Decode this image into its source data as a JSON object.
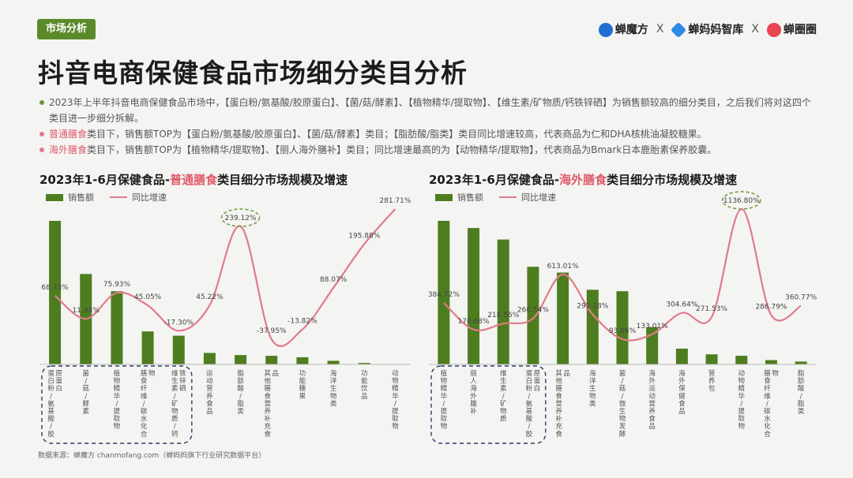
{
  "header": {
    "tag": "市场分析",
    "logos": [
      "蝉魔方",
      "蝉妈妈智库",
      "蝉圈圈"
    ],
    "separator": "X",
    "colors": {
      "tag": "#5b8a2b",
      "logo1": "#1f6fd1",
      "logo2": "#2d8be6",
      "logo3": "#e8454f"
    }
  },
  "title": "抖音电商保健食品市场细分类目分析",
  "bullets": [
    "2023年上半年抖音电商保健食品市场中，【蛋白粉/氨基酸/胶原蛋白】、【菌/菇/酵素】、【植物精华/提取物】、【维生素/矿物质/钙铁锌硒】为销售额较高的细分类目，之后我们将对这四个类目进一步细分拆解。",
    {
      "highlight": "普通膳食",
      "text": "类目下，销售额TOP为【蛋白粉/氨基酸/胶原蛋白】、【菌/菇/酵素】类目；【脂肪酸/脂类】类目同比增速较高，代表商品为仁和DHA核桃油凝胶糖果。"
    },
    {
      "highlight": "海外膳食",
      "text": "类目下，销售额TOP为【植物精华/提取物】、【丽人海外膳补】类目；同比增速最高的为【动物精华/提取物】，代表商品为Bmark日本鹿胎素保养胶囊。"
    }
  ],
  "legend": {
    "bar": "销售额",
    "line": "同比增速"
  },
  "colors": {
    "bar": "#4e7d1f",
    "line": "#e07a8a",
    "highlight": "#e05a6a",
    "dash_box": "#2a3a6a",
    "dash_ellipse": "#6b9a3a"
  },
  "source": "数据来源：蝉魔方 chanmofang.com（蝉妈妈旗下行业研究数据平台）",
  "chart_data": [
    {
      "type": "bar",
      "title_prefix": "2023年1-6月保健食品-",
      "title_highlight": "普通膳食",
      "title_suffix": "类目细分市场规模及增速",
      "categories": [
        "蛋白粉/氨基酸/胶原蛋白",
        "菌/菇/酵素",
        "植物精华/提取物",
        "膳食纤维/碳水化合物",
        "维生素/矿物质/钙铁锌硒",
        "运动营养食品",
        "脂肪酸/脂类",
        "其他膳食营养补充食品",
        "功能糖果",
        "海洋生物类",
        "功能饮品",
        "动物精华/提取物"
      ],
      "series": [
        {
          "name": "销售额",
          "type": "bar",
          "values": [
            100,
            63,
            51,
            23,
            20,
            8,
            6.5,
            6,
            5,
            2.5,
            1,
            0.3
          ]
        },
        {
          "name": "同比增速",
          "type": "line",
          "values": [
            68.73,
            11.94,
            75.93,
            45.05,
            -17.3,
            45.22,
            239.12,
            -37.95,
            -13.82,
            88.07,
            195.88,
            281.71
          ]
        }
      ],
      "labels": [
        "68.73%",
        "11.94%",
        "75.93%",
        "45.05%",
        "-17.30%",
        "45.22%",
        "239.12%",
        "-37.95%",
        "-13.82%",
        "88.07%",
        "195.88%",
        "281.71%"
      ],
      "highlighted_point": 6,
      "boxed_categories": 5
    },
    {
      "type": "bar",
      "title_prefix": "2023年1-6月保健食品-",
      "title_highlight": "海外膳食",
      "title_suffix": "类目细分市场规模及增速",
      "categories": [
        "植物精华/提取物",
        "丽人海外膳补",
        "维生素/矿物质",
        "蛋白粉/氨基酸/胶原蛋白",
        "其他膳食营养补充食品",
        "海洋生物类",
        "菌/菇/微生物发酵",
        "海外运动营养食品",
        "海外保健食品",
        "营养包",
        "动物精华/提取物",
        "膳食纤维/碳水化合物",
        "脂肪酸/脂类"
      ],
      "series": [
        {
          "name": "销售额",
          "type": "bar",
          "values": [
            100,
            95,
            87,
            68,
            64,
            52,
            51,
            26,
            11,
            7,
            6,
            3,
            2
          ]
        },
        {
          "name": "同比增速",
          "type": "line",
          "values": [
            384.72,
            170.68,
            218.56,
            260.54,
            613.01,
            292.28,
            93.66,
            133.01,
            304.64,
            271.53,
            1136.8,
            286.79,
            360.77
          ]
        }
      ],
      "labels": [
        "384.72%",
        "170.68%",
        "218.56%",
        "260.54%",
        "613.01%",
        "292.28%",
        "93.66%",
        "133.01%",
        "304.64%",
        "271.53%",
        "1136.80%",
        "286.79%",
        "360.77%"
      ],
      "highlighted_point": 10,
      "boxed_categories": 4
    }
  ]
}
